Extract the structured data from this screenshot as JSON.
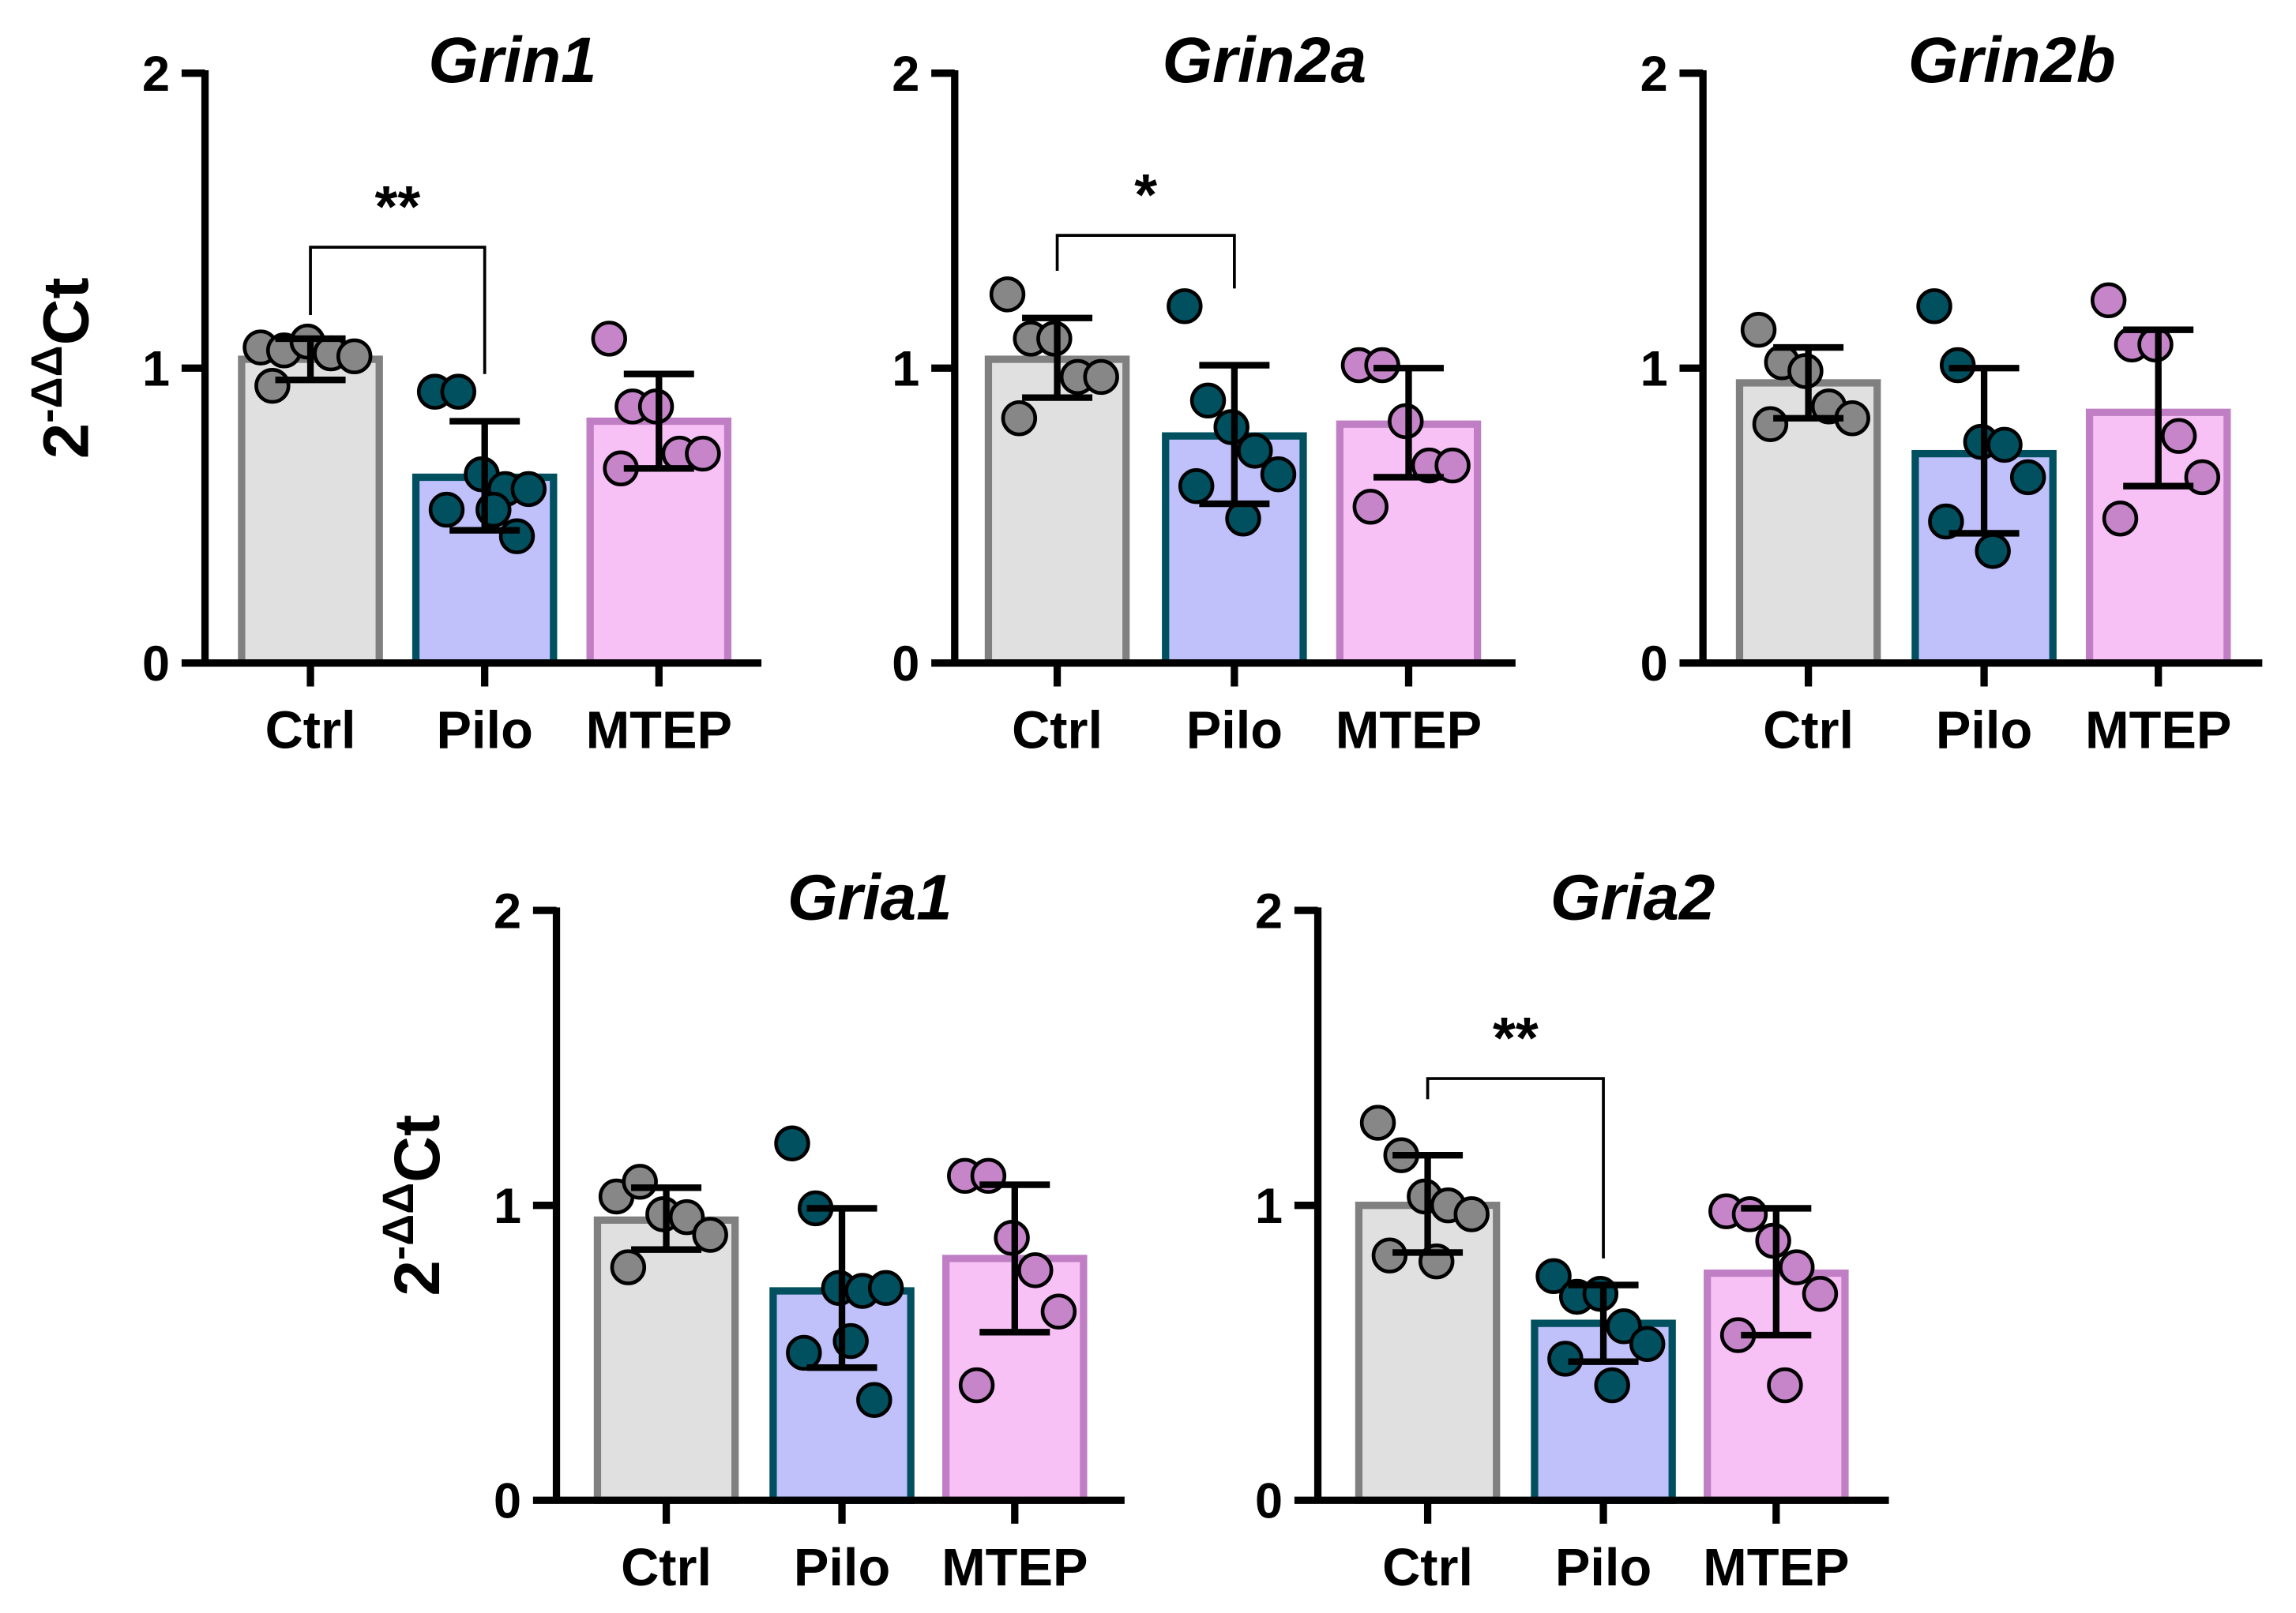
{
  "chart_data": [
    {
      "type": "bar",
      "title": "Grin1",
      "ylabel": {
        "base": "2",
        "sup": "-ΔΔ",
        "rest": "Ct"
      },
      "ylim": [
        0,
        2
      ],
      "yticks": [
        "0",
        "1",
        "2"
      ],
      "categories": [
        "Ctrl",
        "Pilo",
        "MTEP"
      ],
      "means": [
        1.03,
        0.63,
        0.82
      ],
      "error": [
        [
          0.96,
          1.1
        ],
        [
          0.45,
          0.82
        ],
        [
          0.66,
          0.98
        ]
      ],
      "points": [
        [
          1.07,
          1.06,
          1.09,
          1.05,
          1.04,
          0.94
        ],
        [
          0.92,
          0.92,
          0.64,
          0.59,
          0.59,
          0.52,
          0.52,
          0.43
        ],
        [
          1.1,
          0.87,
          0.87,
          0.71,
          0.71,
          0.66
        ]
      ],
      "significance": [
        {
          "from": "Ctrl",
          "to": "Pilo",
          "label": "**",
          "y": 1.41
        }
      ]
    },
    {
      "type": "bar",
      "title": "Grin2a",
      "ylim": [
        0,
        2
      ],
      "yticks": [
        "0",
        "1",
        "2"
      ],
      "categories": [
        "Ctrl",
        "Pilo",
        "MTEP"
      ],
      "means": [
        1.03,
        0.77,
        0.81
      ],
      "error": [
        [
          0.9,
          1.17
        ],
        [
          0.54,
          1.01
        ],
        [
          0.63,
          1.0
        ]
      ],
      "points": [
        [
          1.25,
          1.1,
          1.1,
          0.97,
          0.97,
          0.83
        ],
        [
          1.21,
          0.89,
          0.8,
          0.72,
          0.64,
          0.6,
          0.49
        ],
        [
          1.01,
          1.01,
          0.82,
          0.67,
          0.67,
          0.53
        ]
      ],
      "significance": [
        {
          "from": "Ctrl",
          "to": "Pilo",
          "label": "*",
          "y": 1.45
        }
      ]
    },
    {
      "type": "bar",
      "title": "Grin2b",
      "ylim": [
        0,
        2
      ],
      "yticks": [
        "0",
        "1",
        "2"
      ],
      "categories": [
        "Ctrl",
        "Pilo",
        "MTEP"
      ],
      "means": [
        0.95,
        0.71,
        0.85
      ],
      "error": [
        [
          0.83,
          1.07
        ],
        [
          0.44,
          1.0
        ],
        [
          0.6,
          1.13
        ]
      ],
      "points": [
        [
          1.13,
          1.02,
          0.99,
          0.87,
          0.83,
          0.81
        ],
        [
          1.21,
          1.01,
          0.75,
          0.74,
          0.63,
          0.48,
          0.38
        ],
        [
          1.23,
          1.08,
          1.08,
          0.77,
          0.63,
          0.49
        ]
      ],
      "significance": []
    },
    {
      "type": "bar",
      "title": "Gria1",
      "ylabel": {
        "base": "2",
        "sup": "-ΔΔ",
        "rest": "Ct"
      },
      "ylim": [
        0,
        2
      ],
      "yticks": [
        "0",
        "1",
        "2"
      ],
      "categories": [
        "Ctrl",
        "Pilo",
        "MTEP"
      ],
      "means": [
        0.95,
        0.71,
        0.82
      ],
      "error": [
        [
          0.85,
          1.06
        ],
        [
          0.45,
          0.99
        ],
        [
          0.57,
          1.07
        ]
      ],
      "points": [
        [
          1.03,
          1.08,
          0.97,
          0.96,
          0.9,
          0.79
        ],
        [
          1.21,
          0.99,
          0.72,
          0.71,
          0.72,
          0.5,
          0.54,
          0.34
        ],
        [
          1.1,
          1.1,
          0.89,
          0.78,
          0.64,
          0.39
        ]
      ],
      "significance": []
    },
    {
      "type": "bar",
      "title": "Gria2",
      "ylim": [
        0,
        2
      ],
      "yticks": [
        "0",
        "1",
        "2"
      ],
      "categories": [
        "Ctrl",
        "Pilo",
        "MTEP"
      ],
      "means": [
        1.0,
        0.6,
        0.77
      ],
      "error": [
        [
          0.84,
          1.17
        ],
        [
          0.47,
          0.73
        ],
        [
          0.56,
          0.99
        ]
      ],
      "points": [
        [
          1.28,
          1.17,
          1.03,
          1.0,
          0.97,
          0.83,
          0.81
        ],
        [
          0.76,
          0.69,
          0.7,
          0.59,
          0.53,
          0.48,
          0.39
        ],
        [
          0.98,
          0.97,
          0.88,
          0.79,
          0.7,
          0.56,
          0.39
        ]
      ],
      "significance": [
        {
          "from": "Ctrl",
          "to": "Pilo",
          "label": "**",
          "y": 1.43
        }
      ]
    }
  ],
  "colors": {
    "Ctrl": {
      "fill": "#e0e0e0",
      "stroke": "#808080",
      "point": "#878787"
    },
    "Pilo": {
      "fill": "#c0c0fb",
      "stroke": "#00505f",
      "point": "#00505f"
    },
    "MTEP": {
      "fill": "#f7c1f5",
      "stroke": "#c07fc4",
      "point": "#c585c8"
    }
  }
}
